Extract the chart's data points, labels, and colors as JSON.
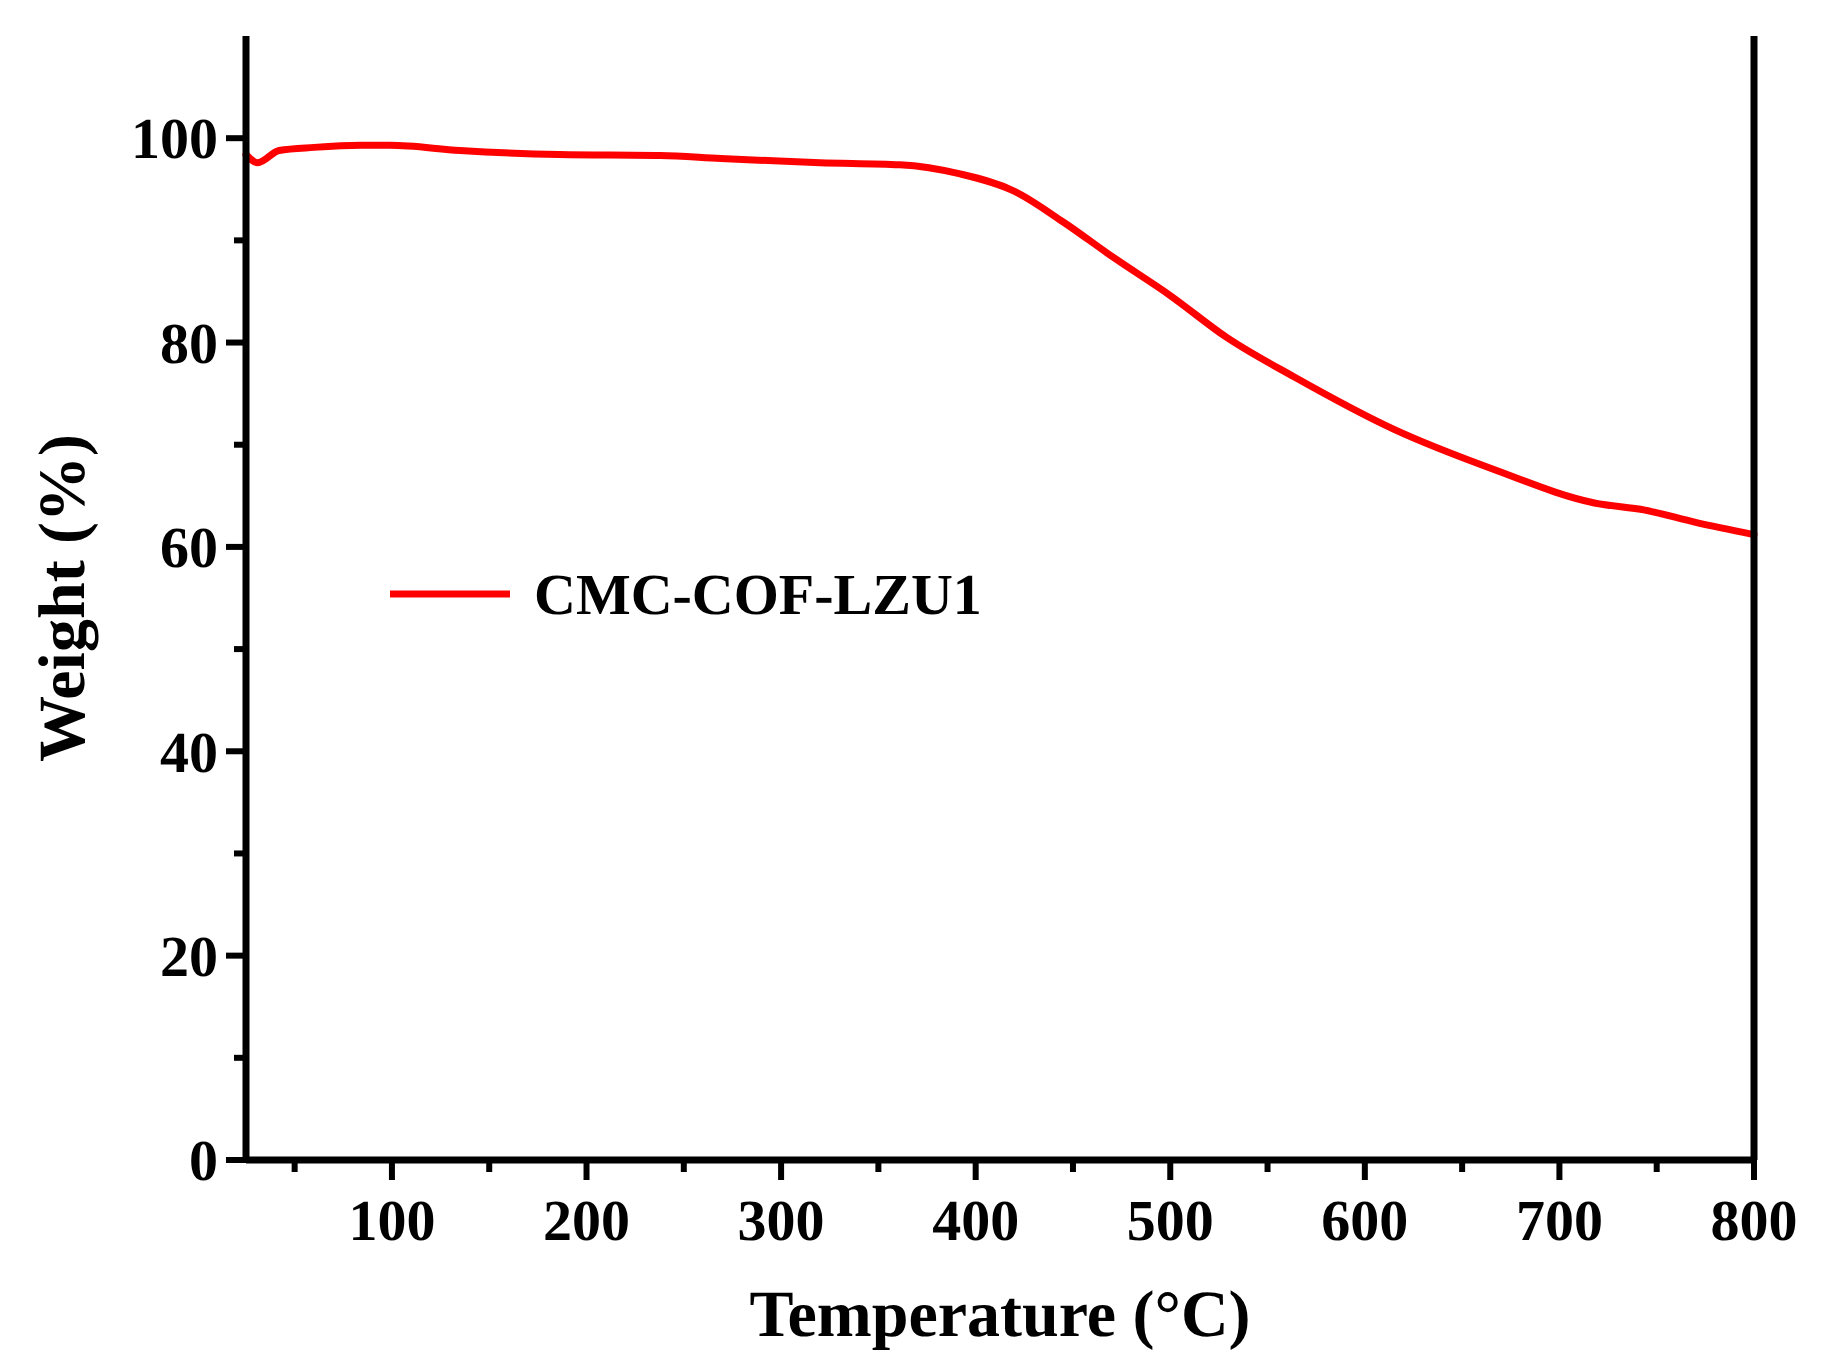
{
  "chart_data": {
    "type": "line",
    "xlabel": "Temperature (°C)",
    "ylabel": "Weight (%)",
    "xlim": [
      25,
      800
    ],
    "ylim": [
      0,
      110
    ],
    "xticks": [
      {
        "value": 50,
        "label": null
      },
      100,
      {
        "value": 150,
        "label": null
      },
      200,
      {
        "value": 250,
        "label": null
      },
      300,
      {
        "value": 350,
        "label": null
      },
      400,
      {
        "value": 450,
        "label": null
      },
      500,
      {
        "value": 550,
        "label": null
      },
      600,
      {
        "value": 650,
        "label": null
      },
      700,
      {
        "value": 750,
        "label": null
      },
      800
    ],
    "yticks": [
      0,
      {
        "value": 10,
        "label": null
      },
      20,
      {
        "value": 30,
        "label": null
      },
      40,
      {
        "value": 50,
        "label": null
      },
      60,
      {
        "value": 70,
        "label": null
      },
      80,
      {
        "value": 90,
        "label": null
      },
      100
    ],
    "legend": "left",
    "grid": false,
    "marker": "none",
    "line_style": "solid",
    "series": [
      {
        "name": "CMC-COF-LZU1",
        "color": "#ff0000",
        "x": [
          25,
          31,
          42,
          60,
          84,
          99,
          135,
          186,
          238,
          269,
          320,
          361,
          392,
          420,
          445,
          471,
          500,
          529,
          564,
          615,
          666,
          718,
          744,
          770,
          800
        ],
        "values": [
          98.4,
          97.6,
          98.8,
          99.1,
          99.3,
          99.3,
          98.8,
          98.4,
          98.3,
          98.0,
          97.6,
          97.4,
          96.5,
          94.8,
          91.8,
          88.3,
          84.6,
          80.5,
          76.6,
          71.5,
          67.6,
          64.3,
          63.6,
          62.4,
          61.2
        ]
      }
    ]
  }
}
